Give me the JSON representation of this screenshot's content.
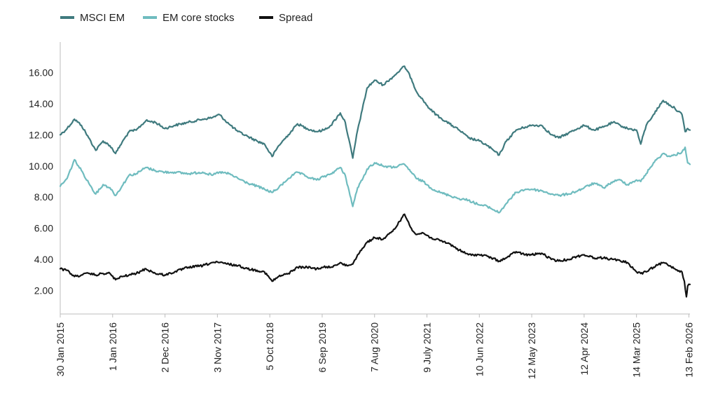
{
  "chart_data": {
    "type": "line",
    "title": "",
    "xlabel": "",
    "ylabel": "",
    "legend_position": "top-left",
    "grid": false,
    "x_range": [
      "2015-01-30",
      "2026-02-20"
    ],
    "y_range": [
      0.5,
      17.5
    ],
    "y_ticks": [
      2,
      4,
      6,
      8,
      10,
      12,
      14,
      16
    ],
    "y_tick_labels": [
      "2.00",
      "4.00",
      "6.00",
      "8.00",
      "10.00",
      "12.00",
      "14.00",
      "16.00"
    ],
    "x_ticks": [
      "2015-01-30",
      "2016-01-01",
      "2016-12-02",
      "2017-11-03",
      "2018-10-05",
      "2019-09-06",
      "2020-08-07",
      "2021-07-09",
      "2022-06-10",
      "2023-05-12",
      "2024-04-12",
      "2025-03-14",
      "2026-02-13"
    ],
    "x_tick_labels": [
      "30 Jan 2015",
      "1 Jan 2016",
      "2 Dec 2016",
      "3 Nov 2017",
      "5 Oct 2018",
      "6 Sep 2019",
      "7 Aug 2020",
      "9 July 2021",
      "10 Jun 2022",
      "12 May 2023",
      "12 Apr 2024",
      "14 Mar 2025",
      "13 Feb 2026"
    ],
    "series": [
      {
        "name": "MSCI EM",
        "color": "#3f7a7e",
        "points": [
          [
            "2015-01-30",
            12.0
          ],
          [
            "2015-03-15",
            12.4
          ],
          [
            "2015-05-01",
            13.0
          ],
          [
            "2015-06-15",
            12.6
          ],
          [
            "2015-08-01",
            11.8
          ],
          [
            "2015-09-15",
            11.0
          ],
          [
            "2015-11-01",
            11.6
          ],
          [
            "2015-12-15",
            11.3
          ],
          [
            "2016-01-20",
            10.8
          ],
          [
            "2016-03-01",
            11.5
          ],
          [
            "2016-04-15",
            12.2
          ],
          [
            "2016-06-01",
            12.3
          ],
          [
            "2016-08-01",
            12.9
          ],
          [
            "2016-10-01",
            12.8
          ],
          [
            "2016-12-01",
            12.4
          ],
          [
            "2017-02-01",
            12.6
          ],
          [
            "2017-05-01",
            12.8
          ],
          [
            "2017-08-01",
            13.0
          ],
          [
            "2017-10-01",
            13.1
          ],
          [
            "2017-11-15",
            13.3
          ],
          [
            "2018-01-15",
            12.7
          ],
          [
            "2018-03-15",
            12.2
          ],
          [
            "2018-05-15",
            11.9
          ],
          [
            "2018-07-15",
            11.6
          ],
          [
            "2018-09-01",
            11.4
          ],
          [
            "2018-10-20",
            10.6
          ],
          [
            "2018-12-01",
            11.3
          ],
          [
            "2019-02-01",
            12.0
          ],
          [
            "2019-04-01",
            12.7
          ],
          [
            "2019-06-01",
            12.4
          ],
          [
            "2019-08-01",
            12.2
          ],
          [
            "2019-09-15",
            12.3
          ],
          [
            "2019-11-01",
            12.6
          ],
          [
            "2019-12-31",
            13.4
          ],
          [
            "2020-02-01",
            12.8
          ],
          [
            "2020-03-20",
            10.5
          ],
          [
            "2020-04-20",
            12.3
          ],
          [
            "2020-05-20",
            13.6
          ],
          [
            "2020-06-20",
            15.0
          ],
          [
            "2020-08-07",
            15.5
          ],
          [
            "2020-10-01",
            15.2
          ],
          [
            "2020-12-01",
            15.7
          ],
          [
            "2021-02-15",
            16.4
          ],
          [
            "2021-03-31",
            15.6
          ],
          [
            "2021-05-01",
            14.8
          ],
          [
            "2021-06-15",
            14.2
          ],
          [
            "2021-08-01",
            13.6
          ],
          [
            "2021-10-01",
            13.1
          ],
          [
            "2021-12-01",
            12.7
          ],
          [
            "2022-02-01",
            12.3
          ],
          [
            "2022-04-01",
            11.8
          ],
          [
            "2022-06-10",
            11.6
          ],
          [
            "2022-08-01",
            11.3
          ],
          [
            "2022-10-15",
            10.7
          ],
          [
            "2022-12-01",
            11.6
          ],
          [
            "2023-02-01",
            12.3
          ],
          [
            "2023-04-01",
            12.5
          ],
          [
            "2023-05-12",
            12.6
          ],
          [
            "2023-07-15",
            12.6
          ],
          [
            "2023-09-15",
            12.0
          ],
          [
            "2023-11-01",
            11.8
          ],
          [
            "2024-01-01",
            12.1
          ],
          [
            "2024-03-01",
            12.4
          ],
          [
            "2024-04-12",
            12.6
          ],
          [
            "2024-06-15",
            12.3
          ],
          [
            "2024-08-15",
            12.5
          ],
          [
            "2024-10-15",
            12.8
          ],
          [
            "2024-12-01",
            12.6
          ],
          [
            "2025-01-15",
            12.4
          ],
          [
            "2025-03-14",
            12.3
          ],
          [
            "2025-04-10",
            11.4
          ],
          [
            "2025-05-15",
            12.6
          ],
          [
            "2025-07-01",
            13.3
          ],
          [
            "2025-09-01",
            14.2
          ],
          [
            "2025-10-15",
            13.9
          ],
          [
            "2025-11-15",
            13.7
          ],
          [
            "2025-12-31",
            13.3
          ],
          [
            "2026-01-20",
            12.2
          ],
          [
            "2026-02-05",
            12.4
          ],
          [
            "2026-02-20",
            12.3
          ]
        ]
      },
      {
        "name": "EM core stocks",
        "color": "#6fbcbf",
        "points": [
          [
            "2015-01-30",
            8.7
          ],
          [
            "2015-03-15",
            9.2
          ],
          [
            "2015-05-01",
            10.4
          ],
          [
            "2015-06-15",
            9.7
          ],
          [
            "2015-08-01",
            8.9
          ],
          [
            "2015-09-15",
            8.2
          ],
          [
            "2015-11-01",
            8.8
          ],
          [
            "2015-12-15",
            8.6
          ],
          [
            "2016-01-20",
            8.1
          ],
          [
            "2016-03-01",
            8.7
          ],
          [
            "2016-04-15",
            9.4
          ],
          [
            "2016-06-01",
            9.5
          ],
          [
            "2016-08-01",
            9.9
          ],
          [
            "2016-10-01",
            9.7
          ],
          [
            "2016-12-01",
            9.6
          ],
          [
            "2017-02-01",
            9.6
          ],
          [
            "2017-05-01",
            9.5
          ],
          [
            "2017-08-01",
            9.6
          ],
          [
            "2017-10-01",
            9.4
          ],
          [
            "2017-11-15",
            9.6
          ],
          [
            "2018-01-15",
            9.5
          ],
          [
            "2018-03-15",
            9.2
          ],
          [
            "2018-05-15",
            8.9
          ],
          [
            "2018-07-15",
            8.7
          ],
          [
            "2018-09-01",
            8.5
          ],
          [
            "2018-10-20",
            8.3
          ],
          [
            "2018-12-01",
            8.6
          ],
          [
            "2019-02-01",
            9.2
          ],
          [
            "2019-04-01",
            9.6
          ],
          [
            "2019-06-01",
            9.3
          ],
          [
            "2019-08-01",
            9.1
          ],
          [
            "2019-09-15",
            9.3
          ],
          [
            "2019-11-01",
            9.5
          ],
          [
            "2019-12-31",
            9.9
          ],
          [
            "2020-02-01",
            9.4
          ],
          [
            "2020-03-20",
            7.4
          ],
          [
            "2020-04-20",
            8.6
          ],
          [
            "2020-05-20",
            9.1
          ],
          [
            "2020-06-20",
            9.8
          ],
          [
            "2020-08-07",
            10.2
          ],
          [
            "2020-10-01",
            10.0
          ],
          [
            "2020-12-01",
            9.9
          ],
          [
            "2021-02-15",
            10.1
          ],
          [
            "2021-03-31",
            9.6
          ],
          [
            "2021-05-01",
            9.2
          ],
          [
            "2021-06-15",
            9.0
          ],
          [
            "2021-08-01",
            8.6
          ],
          [
            "2021-10-01",
            8.3
          ],
          [
            "2021-12-01",
            8.1
          ],
          [
            "2022-02-01",
            7.9
          ],
          [
            "2022-04-01",
            7.8
          ],
          [
            "2022-06-10",
            7.5
          ],
          [
            "2022-08-01",
            7.4
          ],
          [
            "2022-10-15",
            7.0
          ],
          [
            "2022-12-01",
            7.6
          ],
          [
            "2023-02-01",
            8.3
          ],
          [
            "2023-04-01",
            8.5
          ],
          [
            "2023-05-12",
            8.5
          ],
          [
            "2023-07-15",
            8.4
          ],
          [
            "2023-09-15",
            8.2
          ],
          [
            "2023-11-01",
            8.1
          ],
          [
            "2024-01-01",
            8.2
          ],
          [
            "2024-03-01",
            8.4
          ],
          [
            "2024-04-12",
            8.6
          ],
          [
            "2024-06-15",
            8.9
          ],
          [
            "2024-08-15",
            8.6
          ],
          [
            "2024-10-15",
            9.0
          ],
          [
            "2024-12-01",
            9.1
          ],
          [
            "2025-01-15",
            8.8
          ],
          [
            "2025-03-14",
            9.1
          ],
          [
            "2025-04-10",
            9.0
          ],
          [
            "2025-05-15",
            9.5
          ],
          [
            "2025-07-01",
            10.2
          ],
          [
            "2025-09-01",
            10.8
          ],
          [
            "2025-10-15",
            10.6
          ],
          [
            "2025-11-15",
            10.7
          ],
          [
            "2025-12-31",
            10.9
          ],
          [
            "2026-01-20",
            11.2
          ],
          [
            "2026-02-05",
            10.2
          ],
          [
            "2026-02-20",
            10.1
          ]
        ]
      },
      {
        "name": "Spread",
        "color": "#111111",
        "points": [
          [
            "2015-01-30",
            3.4
          ],
          [
            "2015-03-15",
            3.3
          ],
          [
            "2015-05-01",
            2.9
          ],
          [
            "2015-06-15",
            3.0
          ],
          [
            "2015-08-01",
            3.1
          ],
          [
            "2015-09-15",
            3.0
          ],
          [
            "2015-11-01",
            3.1
          ],
          [
            "2015-12-15",
            3.1
          ],
          [
            "2016-01-20",
            2.7
          ],
          [
            "2016-03-01",
            2.9
          ],
          [
            "2016-04-15",
            3.0
          ],
          [
            "2016-06-01",
            3.1
          ],
          [
            "2016-08-01",
            3.4
          ],
          [
            "2016-10-01",
            3.1
          ],
          [
            "2016-12-01",
            3.0
          ],
          [
            "2017-02-01",
            3.2
          ],
          [
            "2017-05-01",
            3.5
          ],
          [
            "2017-08-01",
            3.6
          ],
          [
            "2017-10-01",
            3.8
          ],
          [
            "2017-11-15",
            3.8
          ],
          [
            "2018-01-15",
            3.7
          ],
          [
            "2018-03-15",
            3.6
          ],
          [
            "2018-05-15",
            3.4
          ],
          [
            "2018-07-15",
            3.3
          ],
          [
            "2018-09-01",
            3.2
          ],
          [
            "2018-10-20",
            2.6
          ],
          [
            "2018-12-01",
            2.9
          ],
          [
            "2019-02-01",
            3.1
          ],
          [
            "2019-04-01",
            3.5
          ],
          [
            "2019-06-01",
            3.5
          ],
          [
            "2019-08-01",
            3.4
          ],
          [
            "2019-09-15",
            3.5
          ],
          [
            "2019-11-01",
            3.5
          ],
          [
            "2019-12-31",
            3.8
          ],
          [
            "2020-02-01",
            3.6
          ],
          [
            "2020-03-20",
            3.7
          ],
          [
            "2020-04-20",
            4.3
          ],
          [
            "2020-05-20",
            4.7
          ],
          [
            "2020-06-20",
            5.1
          ],
          [
            "2020-08-07",
            5.4
          ],
          [
            "2020-10-01",
            5.3
          ],
          [
            "2020-12-01",
            5.8
          ],
          [
            "2021-02-15",
            6.9
          ],
          [
            "2021-03-31",
            6.0
          ],
          [
            "2021-05-01",
            5.6
          ],
          [
            "2021-06-15",
            5.7
          ],
          [
            "2021-08-01",
            5.4
          ],
          [
            "2021-10-01",
            5.2
          ],
          [
            "2021-12-01",
            5.0
          ],
          [
            "2022-02-01",
            4.6
          ],
          [
            "2022-04-01",
            4.3
          ],
          [
            "2022-06-10",
            4.3
          ],
          [
            "2022-08-01",
            4.2
          ],
          [
            "2022-10-15",
            3.9
          ],
          [
            "2022-12-01",
            4.1
          ],
          [
            "2023-02-01",
            4.5
          ],
          [
            "2023-04-01",
            4.3
          ],
          [
            "2023-05-12",
            4.3
          ],
          [
            "2023-07-15",
            4.4
          ],
          [
            "2023-09-15",
            4.0
          ],
          [
            "2023-11-01",
            3.9
          ],
          [
            "2024-01-01",
            4.0
          ],
          [
            "2024-03-01",
            4.2
          ],
          [
            "2024-04-12",
            4.3
          ],
          [
            "2024-06-15",
            4.1
          ],
          [
            "2024-08-15",
            4.1
          ],
          [
            "2024-10-15",
            4.0
          ],
          [
            "2024-12-01",
            3.9
          ],
          [
            "2025-01-15",
            3.8
          ],
          [
            "2025-03-14",
            3.2
          ],
          [
            "2025-04-10",
            3.1
          ],
          [
            "2025-05-15",
            3.2
          ],
          [
            "2025-07-01",
            3.5
          ],
          [
            "2025-09-01",
            3.8
          ],
          [
            "2025-10-15",
            3.6
          ],
          [
            "2025-11-15",
            3.4
          ],
          [
            "2025-12-31",
            3.2
          ],
          [
            "2026-01-15",
            2.6
          ],
          [
            "2026-01-28",
            1.6
          ],
          [
            "2026-02-05",
            2.3
          ],
          [
            "2026-02-20",
            2.4
          ]
        ]
      }
    ]
  }
}
